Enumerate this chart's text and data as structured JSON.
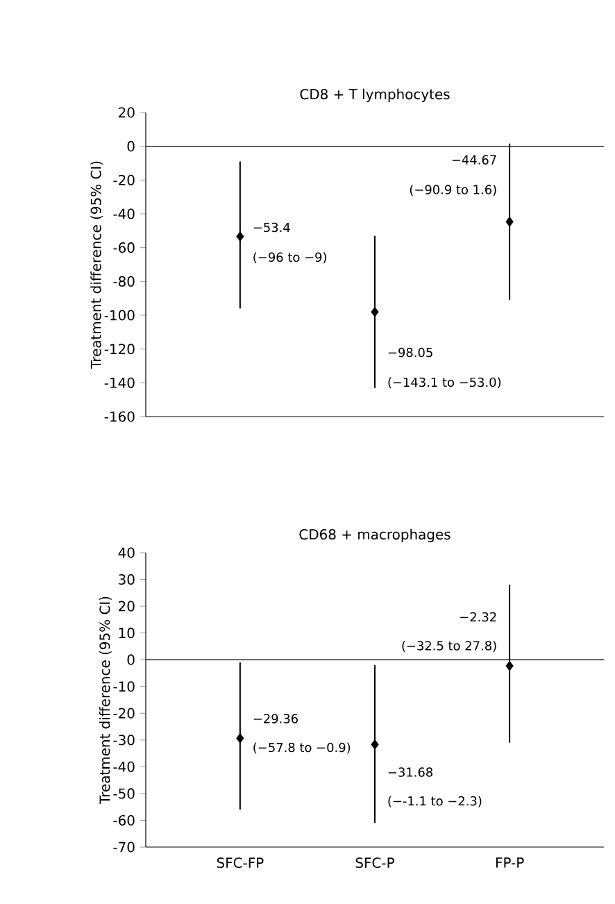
{
  "chart_data": [
    {
      "type": "scatter",
      "title": "CD8 + T lymphocytes",
      "ylabel": "Treatment difference (95% CI)",
      "categories": [
        "SFC-FP",
        "SFC-P",
        "FP-P"
      ],
      "values": [
        -53.4,
        -98.05,
        -44.67
      ],
      "errors": [
        [
          -96,
          -9
        ],
        [
          -143.1,
          -53.0
        ],
        [
          -90.9,
          1.6
        ]
      ],
      "color": "#000000",
      "marker": "diamond",
      "ylim": [
        -160,
        20
      ],
      "yticks": [
        -160,
        -140,
        -120,
        -100,
        -80,
        -60,
        -40,
        -20,
        0,
        20
      ],
      "tick_labels": "y",
      "ref_lines": [
        {
          "axis": "y",
          "value": 0
        }
      ],
      "annotations": [
        {
          "text": "−53.4",
          "x": "SFC-FP",
          "y": -48
        },
        {
          "text": "(−96 to −9)",
          "x": "SFC-FP",
          "y": -66
        },
        {
          "text": "−98.05",
          "x": "SFC-P",
          "y": -122
        },
        {
          "text": "(−143.1 to −53.0)",
          "x": "SFC-P",
          "y": -140
        },
        {
          "text": "−44.67",
          "x": "FP-P",
          "y": -8
        },
        {
          "text": "(−90.9 to 1.6)",
          "x": "FP-P",
          "y": -26
        }
      ]
    },
    {
      "type": "scatter",
      "title": "CD68 + macrophages",
      "ylabel": "Treatment difference (95% CI)",
      "categories": [
        "SFC-FP",
        "SFC-P",
        "FP-P"
      ],
      "values": [
        -29.36,
        -31.68,
        -2.32
      ],
      "errors": [
        [
          -56,
          -1
        ],
        [
          -61,
          -2
        ],
        [
          -31,
          28
        ]
      ],
      "color": "#000000",
      "marker": "diamond",
      "ylim": [
        -70,
        40
      ],
      "yticks": [
        -70,
        -60,
        -50,
        -40,
        -30,
        -20,
        -10,
        0,
        10,
        20,
        30,
        40
      ],
      "ref_lines": [
        {
          "axis": "y",
          "value": 0
        }
      ],
      "annotations": [
        {
          "text": "−29.36",
          "x": "SFC-FP",
          "y": -22
        },
        {
          "text": "(−57.8 to −0.9)",
          "x": "SFC-FP",
          "y": -33
        },
        {
          "text": "−31.68",
          "x": "SFC-P",
          "y": -42
        },
        {
          "text": "(−-1.1 to −2.3)",
          "x": "SFC-P",
          "y": -53
        },
        {
          "text": "−2.32",
          "x": "FP-P",
          "y": 16
        },
        {
          "text": "(−32.5 to 27.8)",
          "x": "FP-P",
          "y": 5
        }
      ]
    }
  ]
}
